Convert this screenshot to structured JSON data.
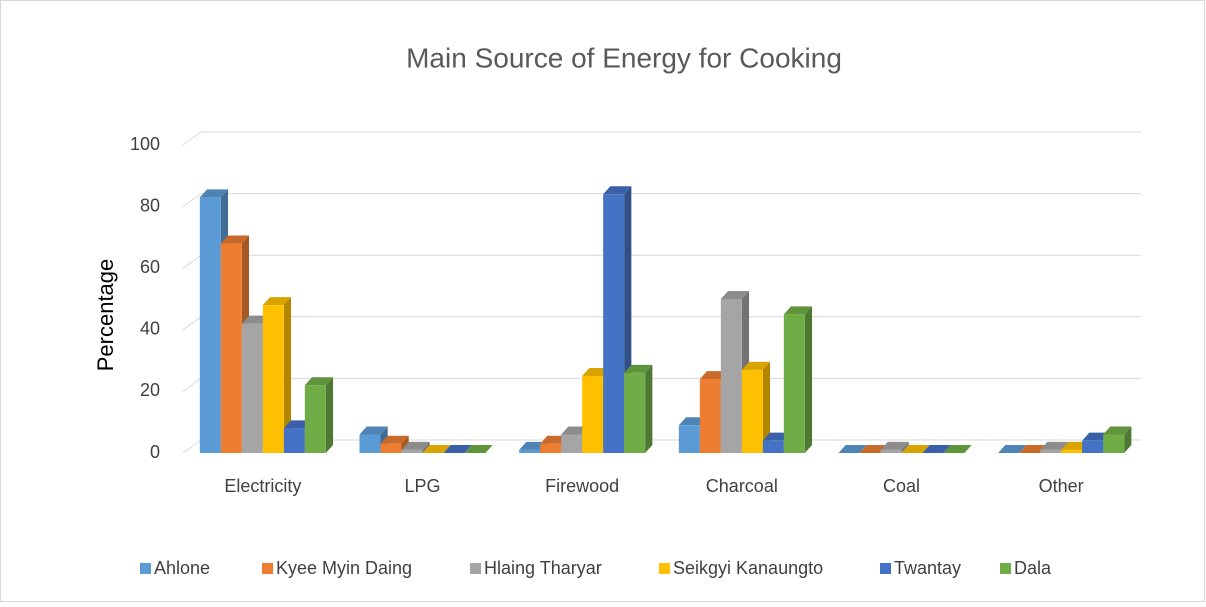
{
  "chart_data": {
    "type": "bar3d",
    "title": "Main Source of Energy for Cooking",
    "y_label": "Percentage",
    "categories": [
      "Electricity",
      "LPG",
      "Firewood",
      "Charcoal",
      "Coal",
      "Other"
    ],
    "series": [
      {
        "name": "Ahlone",
        "color": "#5b9bd5",
        "values": [
          83,
          6,
          1,
          9,
          0,
          0
        ]
      },
      {
        "name": "Kyee Myin Daing",
        "color": "#ed7d31",
        "values": [
          68,
          3,
          3,
          24,
          0,
          0
        ]
      },
      {
        "name": "Hlaing Tharyar",
        "color": "#a5a5a5",
        "values": [
          42,
          1,
          6,
          50,
          1,
          1
        ]
      },
      {
        "name": "Seikgyi Kanaungto",
        "color": "#ffc000",
        "values": [
          48,
          0,
          25,
          27,
          0,
          1
        ]
      },
      {
        "name": "Twantay",
        "color": "#4472c4",
        "values": [
          8,
          0,
          84,
          4,
          0,
          4
        ]
      },
      {
        "name": "Dala",
        "color": "#70ad47",
        "values": [
          22,
          0,
          26,
          45,
          0,
          6
        ]
      }
    ],
    "ylim": [
      0,
      100
    ],
    "yticks": [
      0,
      20,
      40,
      60,
      80,
      100
    ],
    "grid": true,
    "legend": "bottom"
  }
}
